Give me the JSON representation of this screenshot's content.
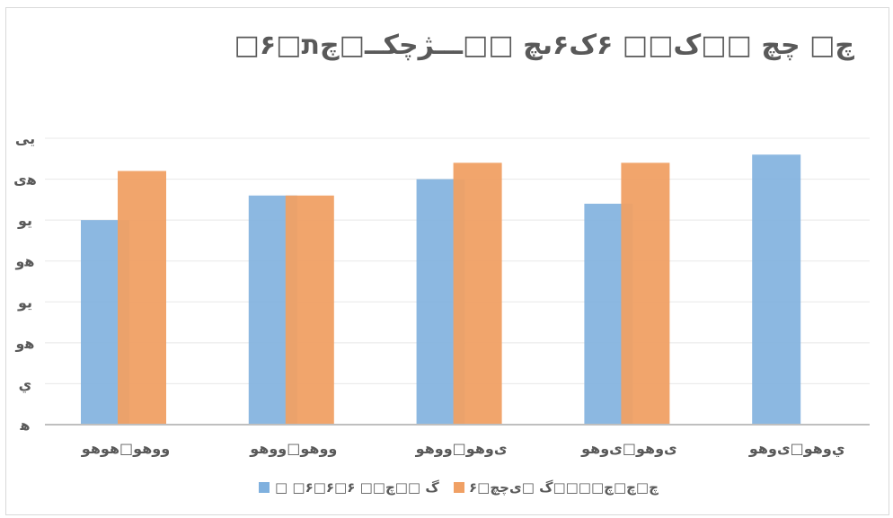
{
  "chart_data": {
    "type": "bar",
    "title": "□۶□چ□ چچ □□ک□□ ۶ک۶ىچ □□ـــژچکــ□چ‌ת",
    "categories": [
      "وو‌هو□هوهو",
      "وو‌هو□ووهو",
      "ى‌وهو□ووهو",
      "ى‌وهو□ى‌وهو",
      "ي‌وهو□ى‌وهو"
    ],
    "y_tick_labels": [
      "ﻫ",
      "ي",
      "ﻫو",
      "يو",
      "ﻫو",
      "يو",
      "ﻫى",
      "يى"
    ],
    "ylim": [
      0,
      7
    ],
    "grid": true,
    "legend_position": "bottom",
    "series": [
      {
        "name": "□ □۶□۶□۶ □□گ □□چ‌",
        "color": "#7fb0de",
        "values": [
          5.0,
          5.6,
          6.0,
          5.4,
          6.6
        ]
      },
      {
        "name": "۶□چ□چ□چ□□□□گ □ى‌چچ",
        "color": "#f0a064",
        "values": [
          6.2,
          5.6,
          6.4,
          6.4,
          null
        ]
      }
    ]
  }
}
